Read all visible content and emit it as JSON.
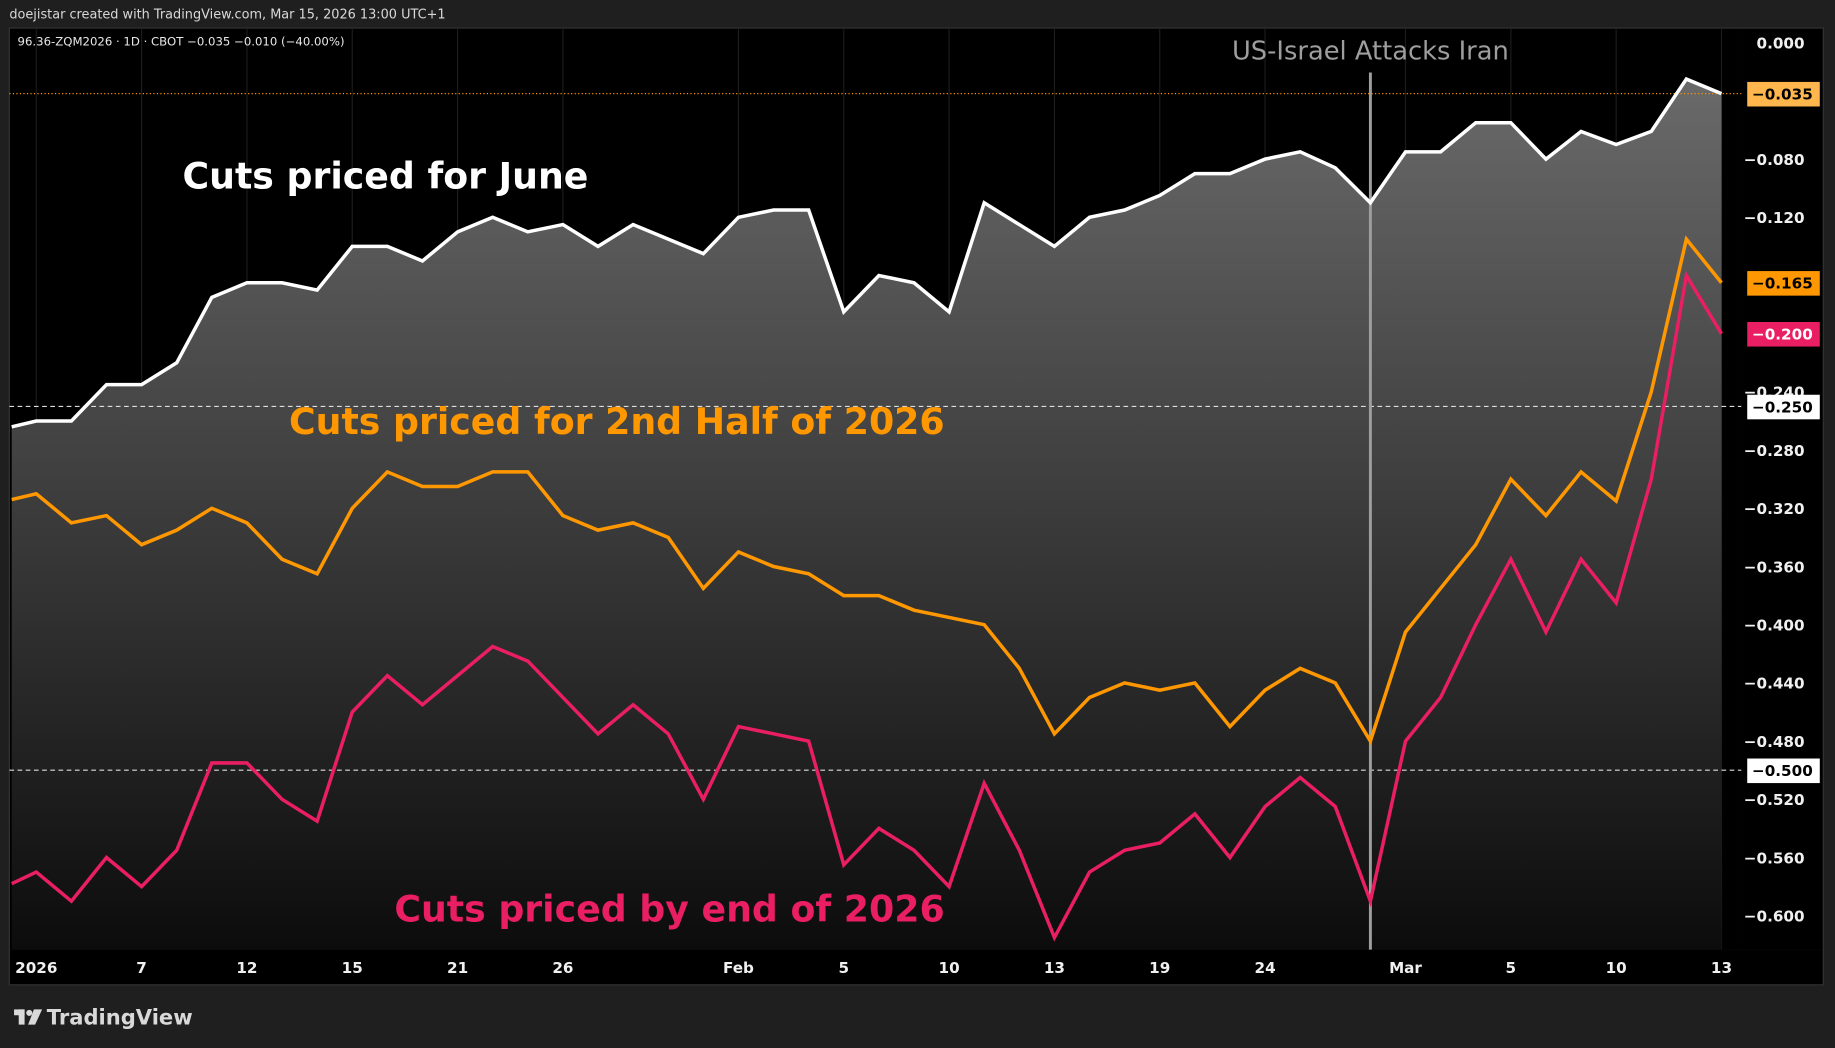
{
  "header": {
    "credit": "doejistar created with TradingView.com, Mar 15, 2026 13:00 UTC+1",
    "legend": "96.36-ZQM2026 · 1D · CBOT  −0.035  −0.010 (−40.00%)"
  },
  "footer": {
    "brand": "TradingView"
  },
  "colors": {
    "white": "#ffffff",
    "orange": "#ff9800",
    "pink": "#e91e63",
    "event": "#9e9e9e",
    "last_label": "#ffb74d"
  },
  "chart_data": {
    "type": "line",
    "title": "",
    "ylim": [
      -0.625,
      0.0
    ],
    "y_ticks": [
      "0.000",
      "−0.080",
      "−0.120",
      "−0.240",
      "−0.280",
      "−0.320",
      "−0.360",
      "−0.400",
      "−0.440",
      "−0.480",
      "−0.520",
      "−0.560",
      "−0.600"
    ],
    "y_tick_values": [
      0,
      -0.08,
      -0.12,
      -0.24,
      -0.28,
      -0.32,
      -0.36,
      -0.4,
      -0.44,
      -0.48,
      -0.52,
      -0.56,
      -0.6
    ],
    "x_ticks": [
      {
        "label": "2026",
        "index": 1
      },
      {
        "label": "7",
        "index": 4
      },
      {
        "label": "12",
        "index": 7
      },
      {
        "label": "15",
        "index": 10
      },
      {
        "label": "21",
        "index": 13
      },
      {
        "label": "26",
        "index": 16
      },
      {
        "label": "Feb",
        "index": 21
      },
      {
        "label": "5",
        "index": 24
      },
      {
        "label": "10",
        "index": 27
      },
      {
        "label": "13",
        "index": 30
      },
      {
        "label": "19",
        "index": 33
      },
      {
        "label": "24",
        "index": 36
      },
      {
        "label": "Mar",
        "index": 40
      },
      {
        "label": "5",
        "index": 43
      },
      {
        "label": "10",
        "index": 46
      },
      {
        "label": "13",
        "index": 49
      }
    ],
    "series": [
      {
        "name": "Cuts priced for June",
        "color": "#ffffff",
        "values": [
          -0.264,
          -0.26,
          -0.26,
          -0.235,
          -0.235,
          -0.22,
          -0.175,
          -0.165,
          -0.165,
          -0.17,
          -0.14,
          -0.14,
          -0.15,
          -0.13,
          -0.12,
          -0.13,
          -0.125,
          -0.14,
          -0.125,
          -0.135,
          -0.145,
          -0.12,
          -0.115,
          -0.115,
          -0.185,
          -0.16,
          -0.165,
          -0.185,
          -0.11,
          -0.125,
          -0.14,
          -0.12,
          -0.115,
          -0.105,
          -0.09,
          -0.09,
          -0.08,
          -0.075,
          -0.086,
          -0.11,
          -0.075,
          -0.075,
          -0.055,
          -0.055,
          -0.08,
          -0.061,
          -0.07,
          -0.061,
          -0.025,
          -0.035
        ]
      },
      {
        "name": "Cuts priced for 2nd Half of 2026",
        "color": "#ff9800",
        "values": [
          -0.314,
          -0.31,
          -0.33,
          -0.325,
          -0.345,
          -0.335,
          -0.32,
          -0.33,
          -0.355,
          -0.365,
          -0.32,
          -0.295,
          -0.305,
          -0.305,
          -0.295,
          -0.295,
          -0.325,
          -0.335,
          -0.33,
          -0.34,
          -0.375,
          -0.35,
          -0.36,
          -0.365,
          -0.38,
          -0.38,
          -0.39,
          -0.395,
          -0.4,
          -0.43,
          -0.475,
          -0.45,
          -0.44,
          -0.445,
          -0.44,
          -0.47,
          -0.445,
          -0.43,
          -0.44,
          -0.48,
          -0.405,
          -0.375,
          -0.345,
          -0.3,
          -0.325,
          -0.295,
          -0.315,
          -0.24,
          -0.135,
          -0.165
        ]
      },
      {
        "name": "Cuts priced by end of 2026",
        "color": "#e91e63",
        "values": [
          -0.578,
          -0.57,
          -0.59,
          -0.56,
          -0.58,
          -0.555,
          -0.495,
          -0.495,
          -0.52,
          -0.535,
          -0.46,
          -0.435,
          -0.455,
          -0.435,
          -0.415,
          -0.425,
          -0.45,
          -0.475,
          -0.455,
          -0.475,
          -0.52,
          -0.47,
          -0.475,
          -0.48,
          -0.565,
          -0.54,
          -0.555,
          -0.58,
          -0.509,
          -0.555,
          -0.615,
          -0.57,
          -0.555,
          -0.55,
          -0.53,
          -0.56,
          -0.525,
          -0.505,
          -0.525,
          -0.59,
          -0.48,
          -0.45,
          -0.4,
          -0.355,
          -0.405,
          -0.355,
          -0.385,
          -0.3,
          -0.16,
          -0.2
        ]
      }
    ],
    "annotations": {
      "june": "Cuts priced for June",
      "h2": "Cuts priced for 2nd Half of 2026",
      "end": "Cuts priced by end of 2026",
      "event": "US-Israel Attacks Iran",
      "event_index": 39
    },
    "price_labels": [
      {
        "text": "−0.035",
        "value": -0.035,
        "bg": "#ffb74d",
        "fg": "#000000"
      },
      {
        "text": "−0.165",
        "value": -0.165,
        "bg": "#ff9800",
        "fg": "#000000"
      },
      {
        "text": "−0.200",
        "value": -0.2,
        "bg": "#e91e63",
        "fg": "#ffffff"
      },
      {
        "text": "−0.250",
        "value": -0.25,
        "bg": "#ffffff",
        "fg": "#000000"
      },
      {
        "text": "−0.500",
        "value": -0.5,
        "bg": "#ffffff",
        "fg": "#000000"
      }
    ],
    "hlines": [
      -0.25,
      -0.5
    ],
    "last_value": -0.035,
    "legend_placement": "none"
  }
}
